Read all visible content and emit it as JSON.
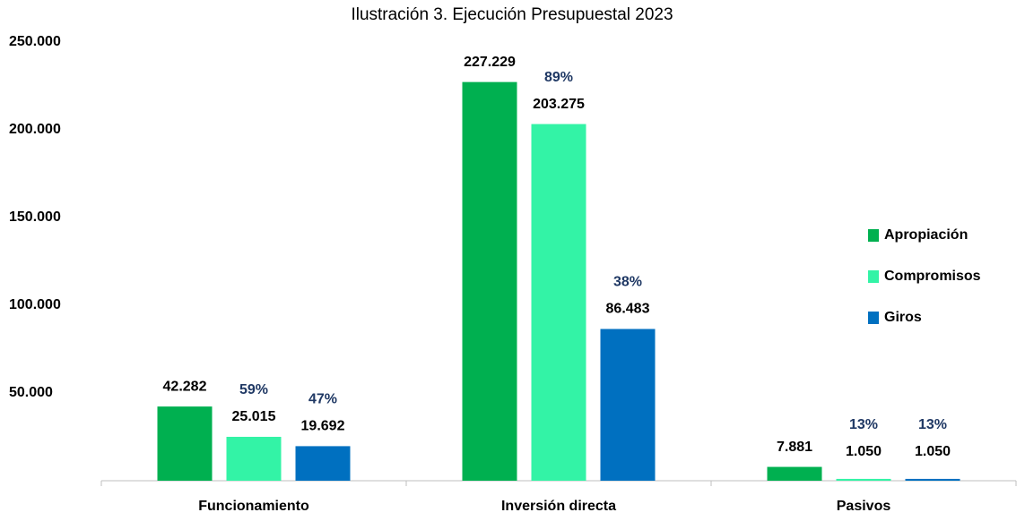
{
  "chart_data": {
    "type": "bar",
    "title": "Ilustración 3.  Ejecución Presupuestal 2023",
    "categories": [
      "Funcionamiento",
      "Inversión directa",
      "Pasivos"
    ],
    "series": [
      {
        "name": "Apropiación",
        "color": "#00b050",
        "values": [
          42282,
          227229,
          7881
        ],
        "value_labels": [
          "42.282",
          "227.229",
          "7.881"
        ]
      },
      {
        "name": "Compromisos",
        "color": "#33f3a6",
        "values": [
          25015,
          203275,
          1050
        ],
        "value_labels": [
          "25.015",
          "203.275",
          "1.050"
        ],
        "percent_labels": [
          "59%",
          "89%",
          "13%"
        ]
      },
      {
        "name": "Giros",
        "color": "#0070c0",
        "values": [
          19692,
          86483,
          1050
        ],
        "value_labels": [
          "19.692",
          "86.483",
          "1.050"
        ],
        "percent_labels": [
          "47%",
          "38%",
          "13%"
        ]
      }
    ],
    "ylim": [
      0,
      250000
    ],
    "yticks": [
      {
        "value": 50000,
        "label": "50.000"
      },
      {
        "value": 100000,
        "label": "100.000"
      },
      {
        "value": 150000,
        "label": "150.000"
      },
      {
        "value": 200000,
        "label": "200.000"
      },
      {
        "value": 250000,
        "label": "250.000"
      }
    ],
    "grid": false,
    "legend": "right"
  }
}
